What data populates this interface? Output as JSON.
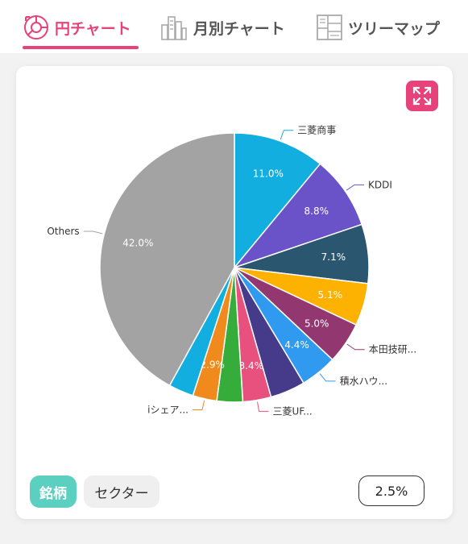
{
  "tabs": [
    {
      "label": "円チャート",
      "icon": "pie-chart-icon",
      "active": true
    },
    {
      "label": "月別チャート",
      "icon": "buildings-icon",
      "active": false
    },
    {
      "label": "ツリーマップ",
      "icon": "treemap-icon",
      "active": false
    }
  ],
  "colors": {
    "accent": "#e8427a",
    "stock_pill": "#5cd0c0"
  },
  "filters": {
    "stock": "銘柄",
    "sector": "セクター",
    "threshold": "2.5%"
  },
  "chart_data": {
    "type": "pie",
    "slices": [
      {
        "label": "三菱商事",
        "value": 11.0,
        "value_label": "11.0%",
        "color": "#12aee0"
      },
      {
        "label": "KDDI",
        "value": 8.8,
        "value_label": "8.8%",
        "color": "#6a52c8"
      },
      {
        "label": "",
        "value": 7.1,
        "value_label": "7.1%",
        "color": "#2b5670"
      },
      {
        "label": "",
        "value": 5.1,
        "value_label": "5.1%",
        "color": "#fdb202"
      },
      {
        "label": "本田技研...",
        "value": 5.0,
        "value_label": "5.0%",
        "color": "#923770"
      },
      {
        "label": "積水ハウ...",
        "value": 4.4,
        "value_label": "4.4%",
        "color": "#2f9af0"
      },
      {
        "label": "",
        "value": 4.2,
        "value_label": "",
        "color": "#463a8a"
      },
      {
        "label": "三菱UF...",
        "value": 3.4,
        "value_label": "3.4%",
        "color": "#e8517e"
      },
      {
        "label": "",
        "value": 3.1,
        "value_label": "",
        "color": "#36ad3b"
      },
      {
        "label": "iシェア...",
        "value": 2.9,
        "value_label": "2.9%",
        "color": "#f08a1c"
      },
      {
        "label": "",
        "value": 3.0,
        "value_label": "",
        "color": "#12aee0"
      },
      {
        "label": "Others",
        "value": 42.0,
        "value_label": "42.0%",
        "color": "#a3a3a3"
      }
    ]
  }
}
